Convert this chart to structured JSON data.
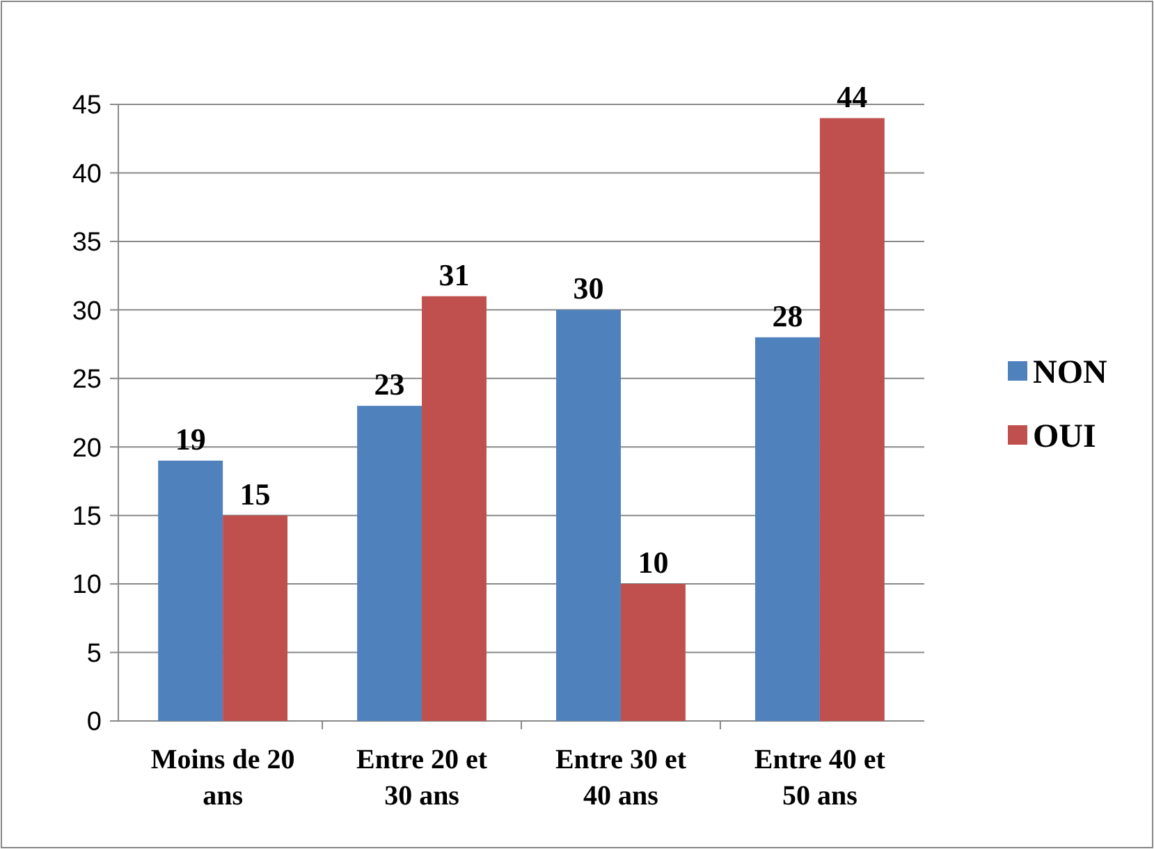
{
  "chart_data": {
    "type": "bar",
    "categories": [
      "Moins de 20 ans",
      "Entre 20 et 30 ans",
      "Entre 30 et 40 ans",
      "Entre 40 et 50 ans"
    ],
    "series": [
      {
        "name": "NON",
        "color": "#4f81bd",
        "values": [
          19,
          23,
          30,
          28
        ]
      },
      {
        "name": "OUI",
        "color": "#c0504d",
        "values": [
          15,
          31,
          10,
          44
        ]
      }
    ],
    "ylim": [
      0,
      45
    ],
    "yticks": [
      0,
      5,
      10,
      15,
      20,
      25,
      30,
      35,
      40,
      45
    ],
    "grid": "y",
    "legend": "right",
    "data_labels": true
  }
}
